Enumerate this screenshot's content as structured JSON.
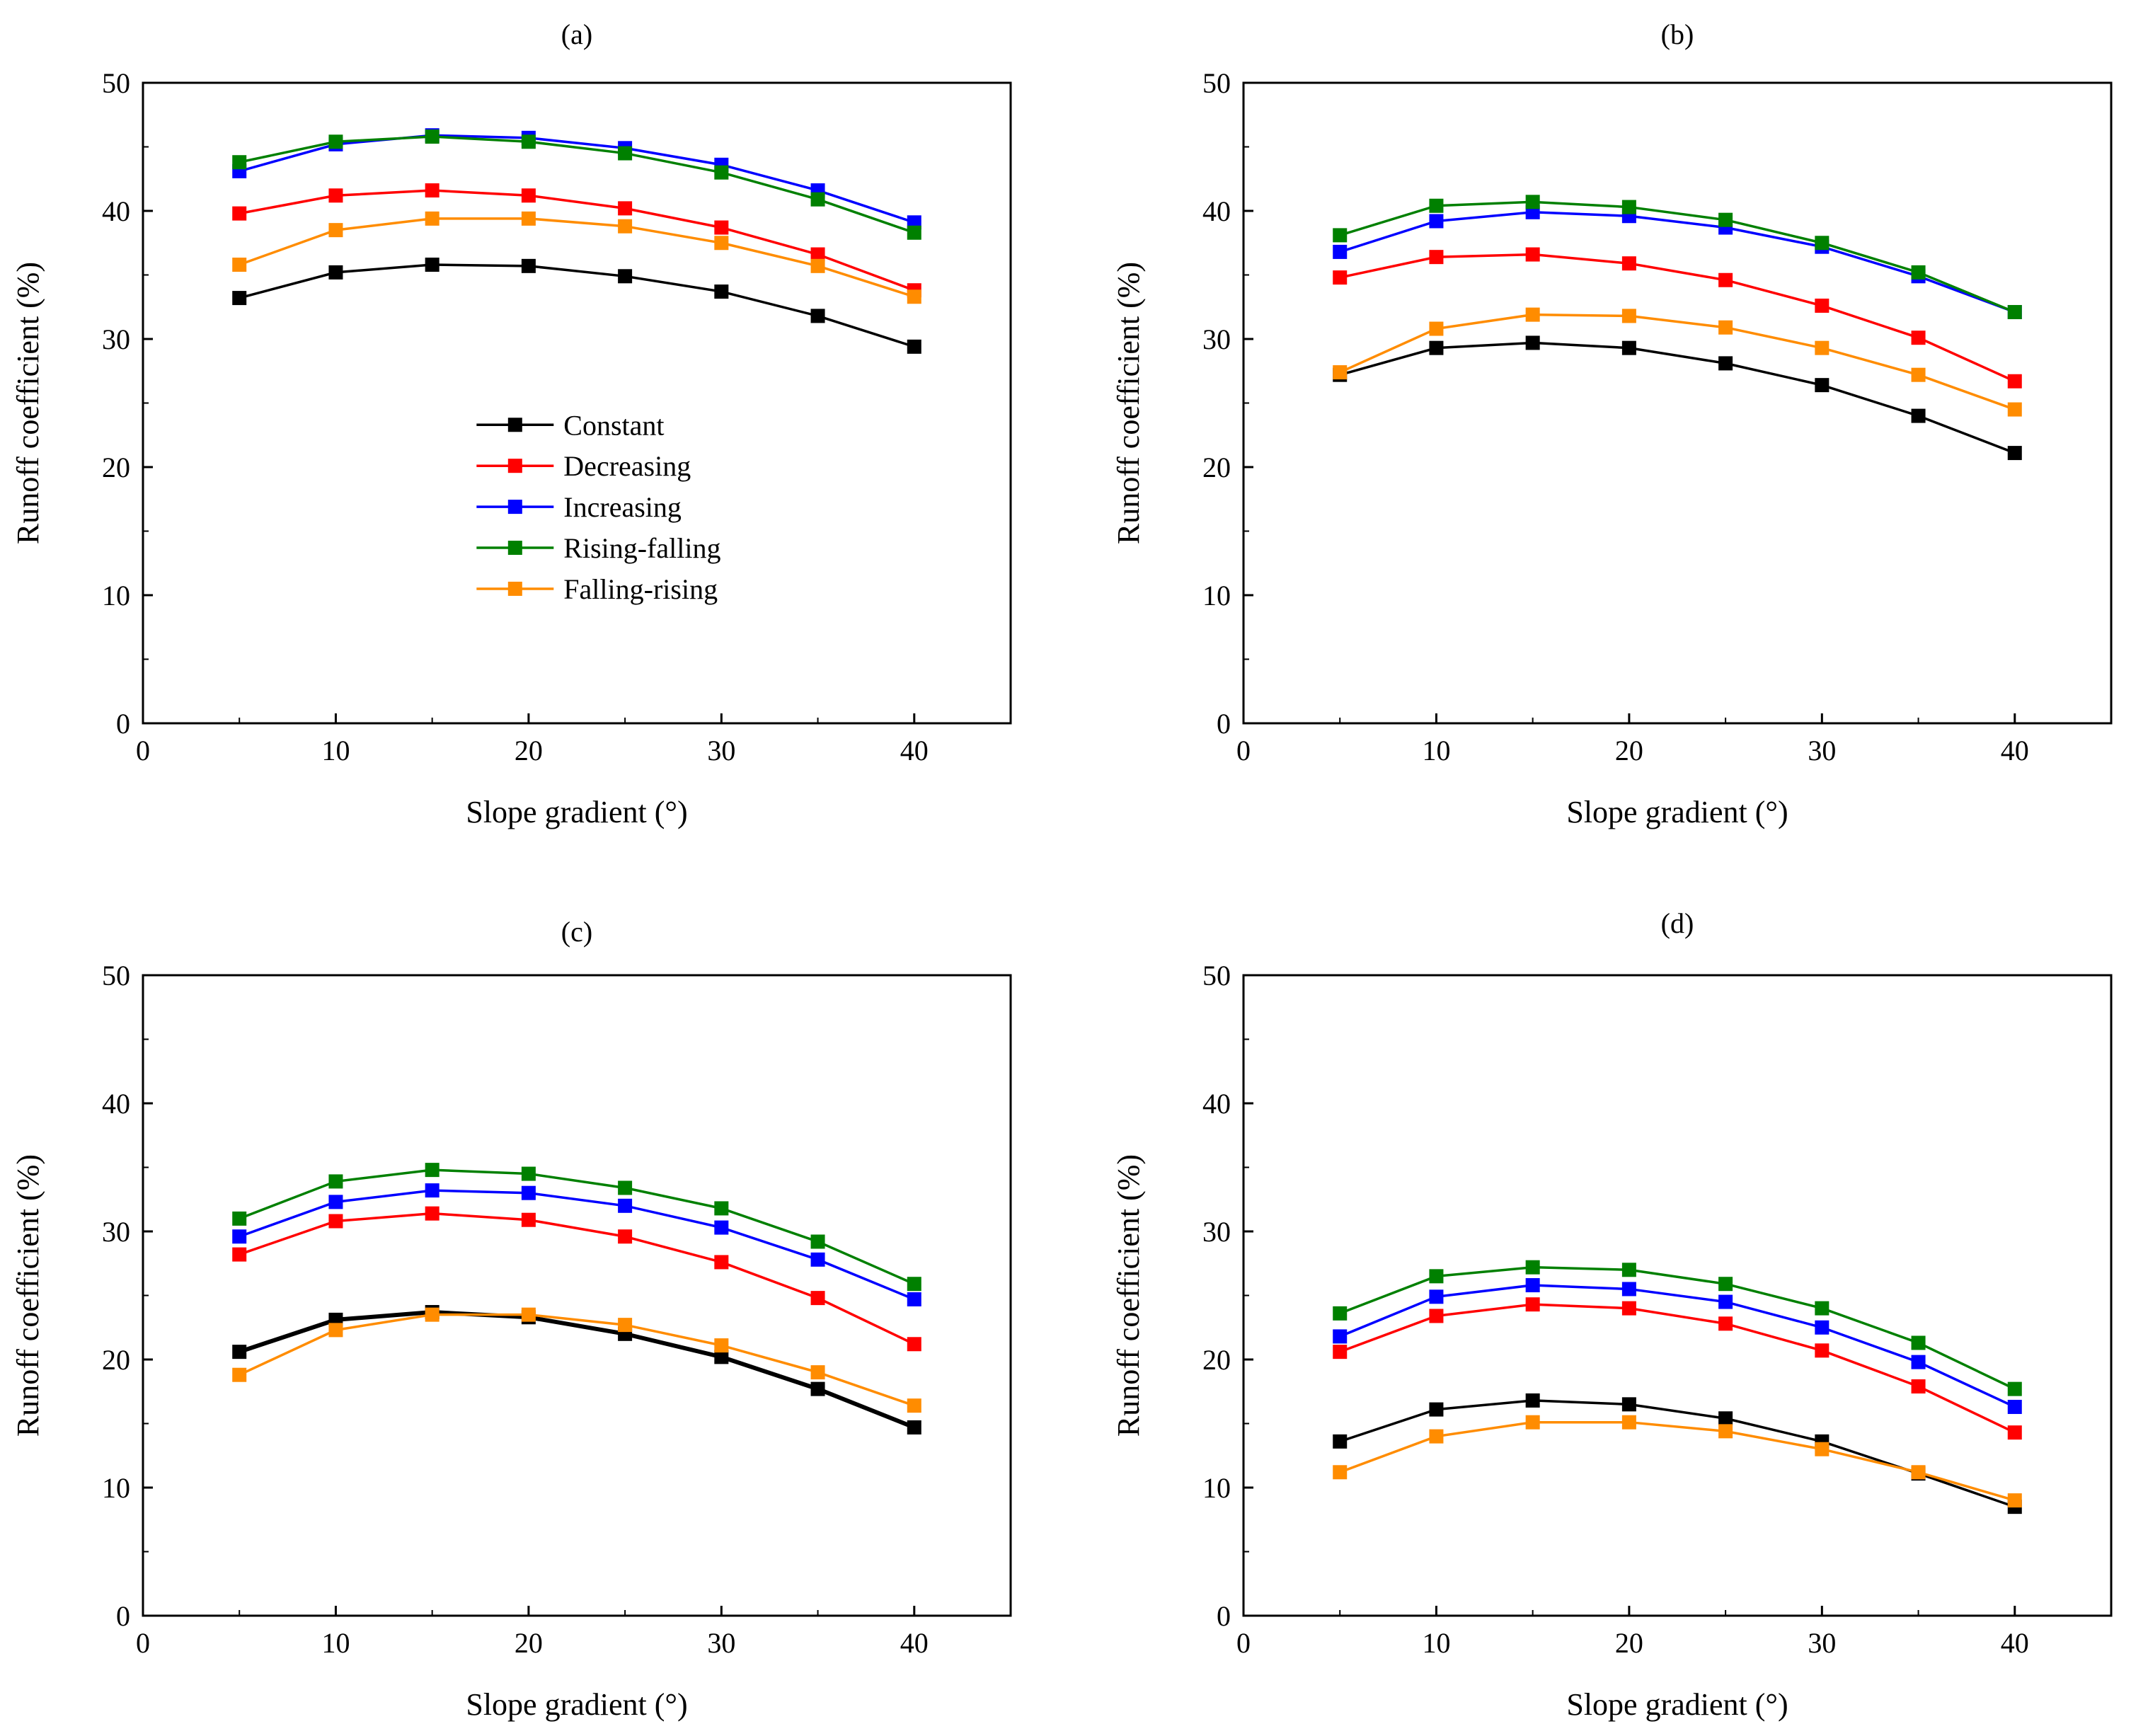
{
  "colors": {
    "Constant": "#000000",
    "Decreasing": "#ff0000",
    "Increasing": "#0000ff",
    "Rising-falling": "#008000",
    "Falling-rising": "#ff8c00"
  },
  "chart_data": [
    {
      "type": "line",
      "title": "(a)",
      "xlabel": "Slope gradient (°)",
      "ylabel": "Runoff coefficient (%)",
      "xlim": [
        0,
        45
      ],
      "ylim": [
        0,
        50
      ],
      "xticks": [
        0,
        10,
        20,
        30,
        40
      ],
      "yticks": [
        0,
        10,
        20,
        30,
        40,
        50
      ],
      "x": [
        5,
        10,
        15,
        20,
        25,
        30,
        35,
        40
      ],
      "legend": "center",
      "legend_entries": [
        "Constant",
        "Decreasing",
        "Increasing",
        "Rising-falling",
        "Falling-rising"
      ],
      "series": [
        {
          "name": "Constant",
          "values": [
            33.2,
            35.2,
            35.8,
            35.7,
            34.9,
            33.7,
            31.8,
            29.4
          ]
        },
        {
          "name": "Decreasing",
          "values": [
            39.8,
            41.2,
            41.6,
            41.2,
            40.2,
            38.7,
            36.6,
            33.8
          ]
        },
        {
          "name": "Increasing",
          "values": [
            43.1,
            45.2,
            45.9,
            45.7,
            44.9,
            43.6,
            41.6,
            39.1
          ]
        },
        {
          "name": "Rising-falling",
          "values": [
            43.8,
            45.4,
            45.8,
            45.4,
            44.5,
            43.0,
            40.9,
            38.3
          ]
        },
        {
          "name": "Falling-rising",
          "values": [
            35.8,
            38.5,
            39.4,
            39.4,
            38.8,
            37.5,
            35.7,
            33.3
          ]
        }
      ]
    },
    {
      "type": "line",
      "title": "(b)",
      "xlabel": "Slope gradient (°)",
      "ylabel": "Runoff coefficient (%)",
      "xlim": [
        0,
        45
      ],
      "ylim": [
        0,
        50
      ],
      "xticks": [
        0,
        10,
        20,
        30,
        40
      ],
      "yticks": [
        0,
        10,
        20,
        30,
        40,
        50
      ],
      "x": [
        5,
        10,
        15,
        20,
        25,
        30,
        35,
        40
      ],
      "series": [
        {
          "name": "Constant",
          "values": [
            27.2,
            29.3,
            29.7,
            29.3,
            28.1,
            26.4,
            24.0,
            21.1
          ]
        },
        {
          "name": "Decreasing",
          "values": [
            34.8,
            36.4,
            36.6,
            35.9,
            34.6,
            32.6,
            30.1,
            26.7
          ]
        },
        {
          "name": "Increasing",
          "values": [
            36.8,
            39.2,
            39.9,
            39.6,
            38.7,
            37.2,
            34.9,
            32.1
          ]
        },
        {
          "name": "Rising-falling",
          "values": [
            38.1,
            40.4,
            40.7,
            40.3,
            39.3,
            37.5,
            35.2,
            32.1
          ]
        },
        {
          "name": "Falling-rising",
          "values": [
            27.4,
            30.8,
            31.9,
            31.8,
            30.9,
            29.3,
            27.2,
            24.5
          ]
        }
      ]
    },
    {
      "type": "line",
      "title": "(c)",
      "xlabel": "Slope gradient (°)",
      "ylabel": "Runoff coefficient (%)",
      "xlim": [
        0,
        45
      ],
      "ylim": [
        0,
        50
      ],
      "xticks": [
        0,
        10,
        20,
        30,
        40
      ],
      "yticks": [
        0,
        10,
        20,
        30,
        40,
        50
      ],
      "x": [
        5,
        10,
        15,
        20,
        25,
        30,
        35,
        40
      ],
      "series": [
        {
          "name": "Constant",
          "values": [
            20.6,
            23.1,
            23.7,
            23.3,
            22.0,
            20.2,
            17.7,
            14.7
          ]
        },
        {
          "name": "Decreasing",
          "values": [
            28.2,
            30.8,
            31.4,
            30.9,
            29.6,
            27.6,
            24.8,
            21.2
          ]
        },
        {
          "name": "Increasing",
          "values": [
            29.6,
            32.3,
            33.2,
            33.0,
            32.0,
            30.3,
            27.8,
            24.7
          ]
        },
        {
          "name": "Rising-falling",
          "values": [
            31.0,
            33.9,
            34.8,
            34.5,
            33.4,
            31.8,
            29.2,
            25.9
          ]
        },
        {
          "name": "Falling-rising",
          "values": [
            18.8,
            22.3,
            23.5,
            23.5,
            22.7,
            21.1,
            19.0,
            16.4
          ]
        }
      ]
    },
    {
      "type": "line",
      "title": "(d)",
      "xlabel": "Slope gradient (°)",
      "ylabel": "Runoff coefficient (%)",
      "xlim": [
        0,
        45
      ],
      "ylim": [
        0,
        50
      ],
      "xticks": [
        0,
        10,
        20,
        30,
        40
      ],
      "yticks": [
        0,
        10,
        20,
        30,
        40,
        50
      ],
      "x": [
        5,
        10,
        15,
        20,
        25,
        30,
        35,
        40
      ],
      "series": [
        {
          "name": "Constant",
          "values": [
            13.6,
            16.1,
            16.8,
            16.5,
            15.4,
            13.6,
            11.1,
            8.5
          ]
        },
        {
          "name": "Decreasing",
          "values": [
            20.6,
            23.4,
            24.3,
            24.0,
            22.8,
            20.7,
            17.9,
            14.3
          ]
        },
        {
          "name": "Increasing",
          "values": [
            21.8,
            24.9,
            25.8,
            25.5,
            24.5,
            22.5,
            19.8,
            16.3
          ]
        },
        {
          "name": "Rising-falling",
          "values": [
            23.6,
            26.5,
            27.2,
            27.0,
            25.9,
            24.0,
            21.3,
            17.7
          ]
        },
        {
          "name": "Falling-rising",
          "values": [
            11.2,
            14.0,
            15.1,
            15.1,
            14.4,
            13.0,
            11.2,
            9.0
          ]
        }
      ]
    }
  ]
}
